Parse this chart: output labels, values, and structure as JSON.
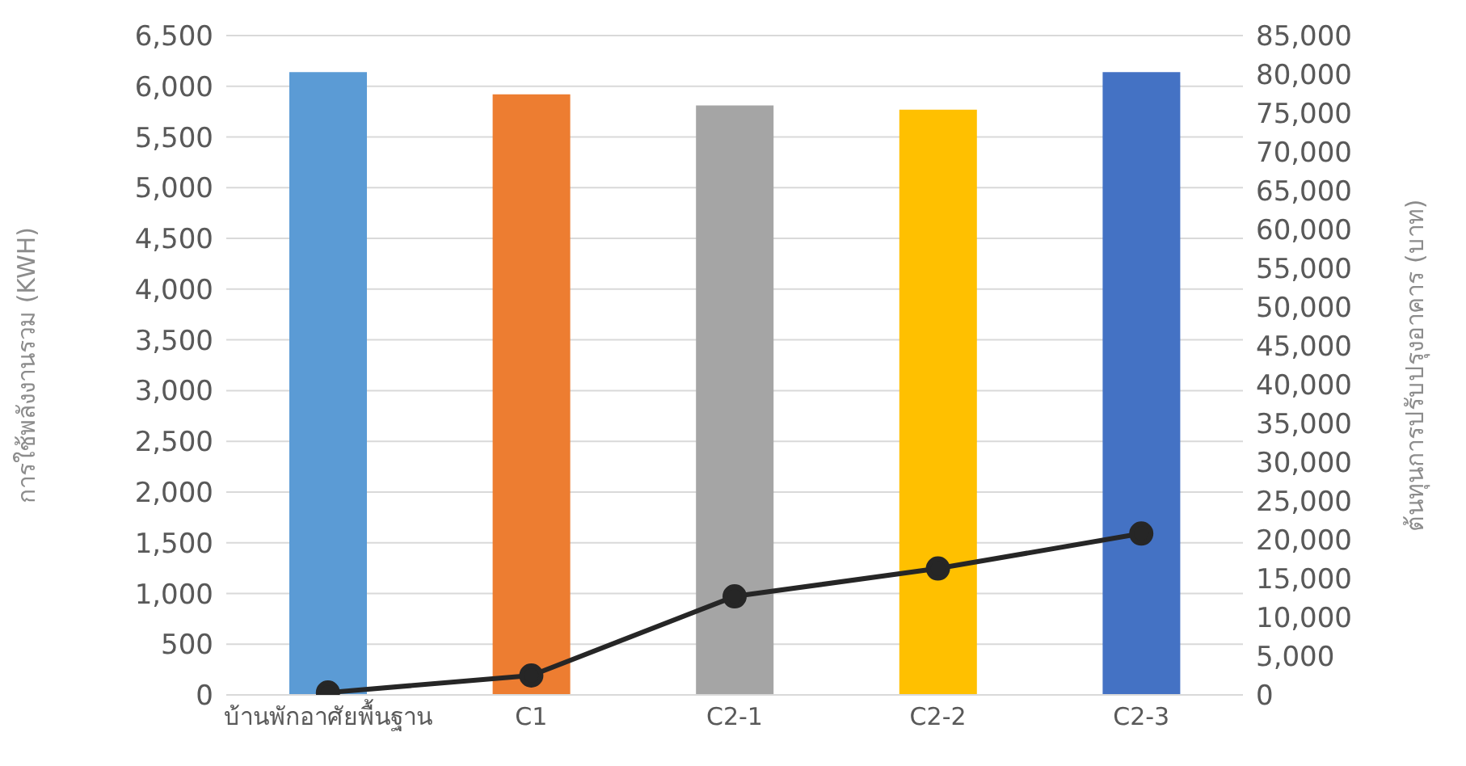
{
  "chart_data": {
    "type": "bar",
    "categories": [
      "บ้านพักอาศัยพื้นฐาน",
      "C1",
      "C2-1",
      "C2-2",
      "C2-3"
    ],
    "ylabel": "การใช้พลังงานรวม (KWH)",
    "y2label": "ต้นทุนการปรับปรุงอาคาร (บาท)",
    "series": [
      {
        "colors": [
          "#5b9bd5",
          "#ed7d31",
          "#a5a5a5",
          "#ffc000",
          "#4472c4"
        ],
        "values": [
          6140,
          5920,
          5810,
          5770,
          6140
        ]
      },
      {
        "type": "line",
        "axis": "y2",
        "color": "#262626",
        "marker": "circle",
        "line_style": "solid",
        "values": [
          300,
          2500,
          12700,
          16300,
          20800
        ]
      }
    ],
    "ylim": [
      0,
      6500
    ],
    "yticks": [
      0,
      500,
      {
        "value": 1000,
        "label": "1,000"
      },
      {
        "value": 1500,
        "label": "1,500"
      },
      {
        "value": 2000,
        "label": "2,000"
      },
      {
        "value": 2500,
        "label": "2,500"
      },
      {
        "value": 3000,
        "label": "3,000"
      },
      {
        "value": 3500,
        "label": "3,500"
      },
      {
        "value": 4000,
        "label": "4,000"
      },
      {
        "value": 4500,
        "label": "4,500"
      },
      {
        "value": 5000,
        "label": "5,000"
      },
      {
        "value": 5500,
        "label": "5,500"
      },
      {
        "value": 6000,
        "label": "6,000"
      },
      {
        "value": 6500,
        "label": "6,500"
      }
    ],
    "y2lim": [
      0,
      85000
    ],
    "y2ticks": [
      0,
      {
        "value": 5000,
        "label": "5,000"
      },
      {
        "value": 10000,
        "label": "10,000"
      },
      {
        "value": 15000,
        "label": "15,000"
      },
      {
        "value": 20000,
        "label": "20,000"
      },
      {
        "value": 25000,
        "label": "25,000"
      },
      {
        "value": 30000,
        "label": "30,000"
      },
      {
        "value": 35000,
        "label": "35,000"
      },
      {
        "value": 40000,
        "label": "40,000"
      },
      {
        "value": 45000,
        "label": "45,000"
      },
      {
        "value": 50000,
        "label": "50,000"
      },
      {
        "value": 55000,
        "label": "55,000"
      },
      {
        "value": 60000,
        "label": "60,000"
      },
      {
        "value": 65000,
        "label": "65,000"
      },
      {
        "value": 70000,
        "label": "70,000"
      },
      {
        "value": 75000,
        "label": "75,000"
      },
      {
        "value": 80000,
        "label": "80,000"
      },
      {
        "value": 85000,
        "label": "85,000"
      }
    ],
    "grid": "y",
    "legend": false
  }
}
